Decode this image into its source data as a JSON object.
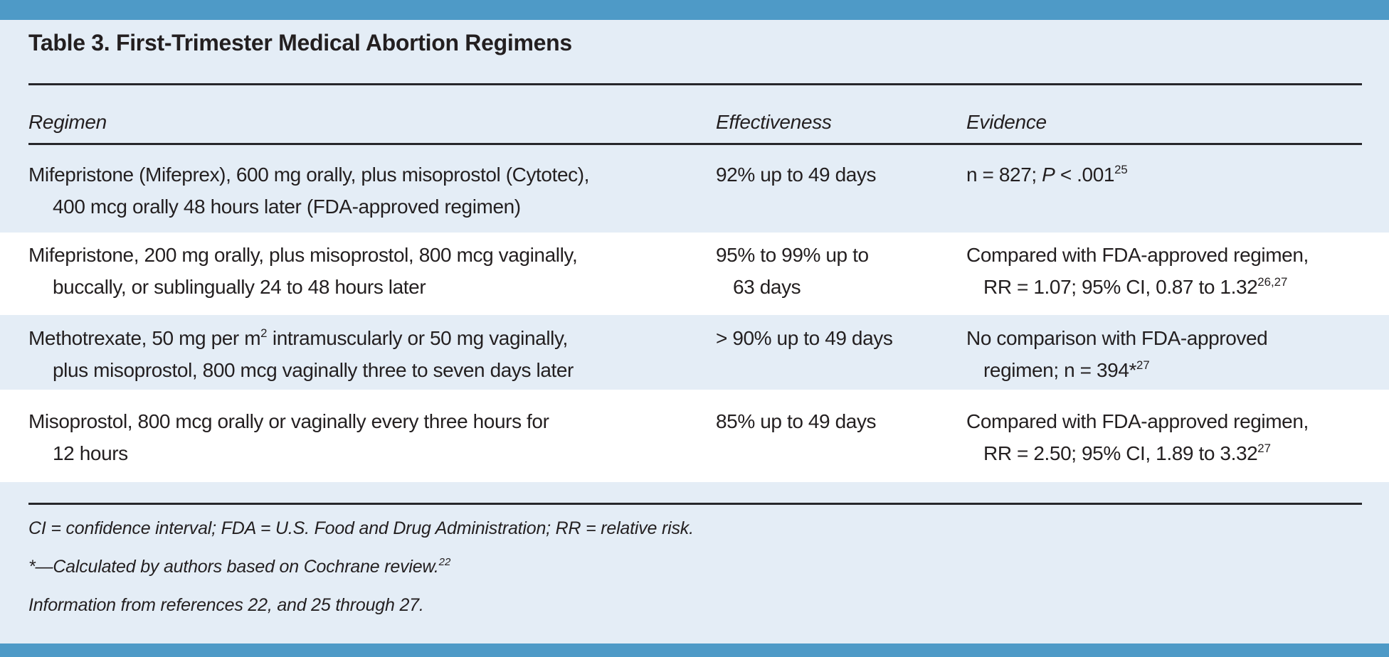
{
  "title": "Table 3. First-Trimester Medical Abortion Regimens",
  "columns": {
    "regimen": "Regimen",
    "effectiveness": "Effectiveness",
    "evidence": "Evidence"
  },
  "rows": [
    {
      "regimen": {
        "line1": "Mifepristone (Mifeprex), 600 mg orally, plus misoprostol (Cytotec),",
        "line2": "400 mcg orally 48 hours later (FDA-approved regimen)"
      },
      "effectiveness": {
        "line1": "92% up to 49 days",
        "line2": ""
      },
      "evidence": {
        "line1": "n = 827; {i:P} < .001^{25}",
        "line2": ""
      }
    },
    {
      "regimen": {
        "line1": "Mifepristone, 200 mg orally, plus misoprostol, 800 mcg vaginally,",
        "line2": "buccally, or sublingually 24 to 48 hours later"
      },
      "effectiveness": {
        "line1": "95% to 99% up to",
        "line2": "63 days"
      },
      "evidence": {
        "line1": "Compared with FDA-approved regimen,",
        "line2": "RR = 1.07; 95% CI, 0.87 to 1.32^{26,27}"
      }
    },
    {
      "regimen": {
        "line1": "Methotrexate, 50 mg per m^{2} intramuscularly or 50 mg vaginally,",
        "line2": "plus misoprostol, 800 mcg vaginally three to seven days later"
      },
      "effectiveness": {
        "line1": "> 90% up to 49 days",
        "line2": ""
      },
      "evidence": {
        "line1": "No comparison with FDA-approved",
        "line2": "regimen; n = 394*^{27}"
      }
    },
    {
      "regimen": {
        "line1": "Misoprostol, 800 mcg orally or vaginally every three hours for",
        "line2": "12 hours"
      },
      "effectiveness": {
        "line1": "85% up to 49 days",
        "line2": ""
      },
      "evidence": {
        "line1": "Compared with FDA-approved regimen,",
        "line2": "RR = 2.50; 95% CI, 1.89 to 3.32^{27}"
      }
    }
  ],
  "footnotes": {
    "abbreviations": "CI = confidence interval; FDA = U.S. Food and Drug Administration; RR = relative risk.",
    "asterisk": "*—Calculated by authors based on Cochrane review.^{22}",
    "source": "Information from references 22, and 25 through 27."
  },
  "colors": {
    "accent_bar": "#4e9ac7",
    "panel_background": "#e4edf6",
    "row_stripe": "#ffffff",
    "text": "#231f20"
  }
}
